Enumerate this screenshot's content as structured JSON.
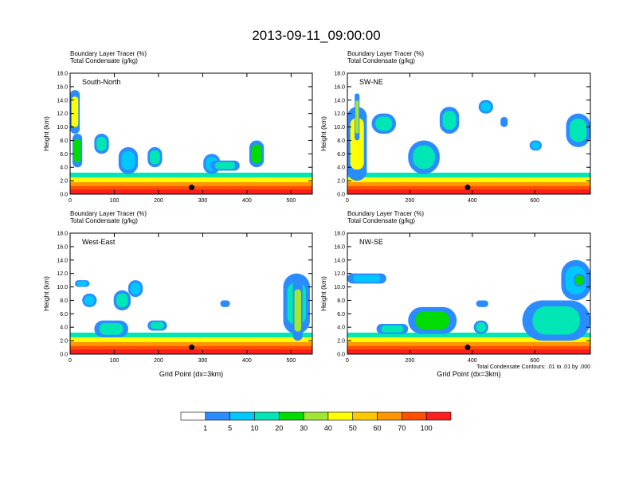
{
  "title": "2013-09-11_09:00:00",
  "chart_data": {
    "type": "heatmap",
    "title": "2013-09-11_09:00:00",
    "ylabel": "Height (km)",
    "xlabel": "Grid Point (dx=3km)",
    "ylim": [
      0,
      18
    ],
    "yticks": [
      "0.0",
      "2.0",
      "4.0",
      "6.0",
      "8.0",
      "10.0",
      "12.0",
      "14.0",
      "16.0",
      "18.0"
    ],
    "header_line1": "Boundary Layer Tracer    (%)",
    "header_line2": "Total Condensate    (g/kg)",
    "contour_note": "Total Condensate Contours: .01 to .01 by .000",
    "colorbar": {
      "levels": [
        "1",
        "5",
        "10",
        "20",
        "30",
        "40",
        "50",
        "60",
        "70",
        "100"
      ],
      "colors": [
        "#ffffff",
        "#2a8cff",
        "#00c8ff",
        "#00e6b4",
        "#00dc00",
        "#a0e632",
        "#ffff00",
        "#ffc800",
        "#ff9600",
        "#ff5000",
        "#ff1e1e"
      ]
    },
    "panels": [
      {
        "name": "South-North",
        "xmax": 548,
        "xticks": [
          0,
          100,
          200,
          300,
          400,
          500
        ],
        "marker_x": 275,
        "show_xlabel": false,
        "show_note": false
      },
      {
        "name": "SW-NE",
        "xmax": 778,
        "xticks": [
          0,
          200,
          400,
          600
        ],
        "marker_x": 385,
        "show_xlabel": false,
        "show_note": false
      },
      {
        "name": "West-East",
        "xmax": 548,
        "xticks": [
          0,
          100,
          200,
          300,
          400,
          500
        ],
        "marker_x": 275,
        "show_xlabel": true,
        "show_note": false
      },
      {
        "name": "NW-SE",
        "xmax": 778,
        "xticks": [
          0,
          200,
          400,
          600
        ],
        "marker_x": 385,
        "show_xlabel": true,
        "show_note": true
      }
    ]
  }
}
